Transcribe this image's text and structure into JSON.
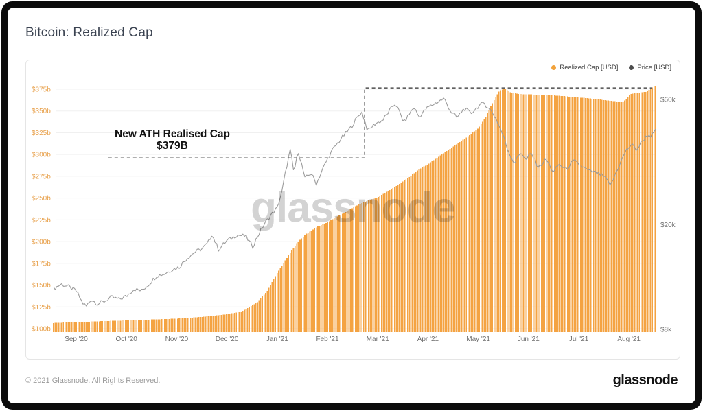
{
  "header": {
    "title": "Bitcoin: Realized Cap"
  },
  "legend": {
    "items": [
      {
        "label": "Realized Cap [USD]",
        "color": "#F2A23B"
      },
      {
        "label": "Price [USD]",
        "color": "#4D4D4D"
      }
    ]
  },
  "watermark": "glassnode",
  "footer": {
    "copyright": "© 2021 Glassnode. All Rights Reserved.",
    "brand": "glassnode"
  },
  "colors": {
    "realized_cap": "#F4A342",
    "price_line": "#9C9C9C",
    "axis_left": "#E8A14C",
    "axis_right": "#6E6E6E",
    "grid": "#F0F0F0",
    "annotation_dash": "#2B2B2B"
  },
  "chart_data": {
    "type": "combo",
    "title": "Bitcoin: Realized Cap",
    "x_unit": "months since Sep 1 2020",
    "x_range": [
      -0.45,
      11.53
    ],
    "grid": true,
    "legend_position": "top-right",
    "x_ticks": [
      {
        "label": "Sep '20",
        "t": 0
      },
      {
        "label": "Oct '20",
        "t": 1
      },
      {
        "label": "Nov '20",
        "t": 2
      },
      {
        "label": "Dec '20",
        "t": 3
      },
      {
        "label": "Jan '21",
        "t": 4
      },
      {
        "label": "Feb '21",
        "t": 5
      },
      {
        "label": "Mar '21",
        "t": 6
      },
      {
        "label": "Apr '21",
        "t": 7
      },
      {
        "label": "May '21",
        "t": 8
      },
      {
        "label": "Jun '21",
        "t": 9
      },
      {
        "label": "Jul '21",
        "t": 10
      },
      {
        "label": "Aug '21",
        "t": 11
      }
    ],
    "left_axis": {
      "unit": "USD billions",
      "ylim": [
        100,
        375
      ],
      "ticks": [
        {
          "label": "$375b",
          "value": 375
        },
        {
          "label": "$350b",
          "value": 350
        },
        {
          "label": "$325b",
          "value": 325
        },
        {
          "label": "$300b",
          "value": 300
        },
        {
          "label": "$275b",
          "value": 275
        },
        {
          "label": "$250b",
          "value": 250
        },
        {
          "label": "$225b",
          "value": 225
        },
        {
          "label": "$200b",
          "value": 200
        },
        {
          "label": "$175b",
          "value": 175
        },
        {
          "label": "$150b",
          "value": 150
        },
        {
          "label": "$125b",
          "value": 125
        },
        {
          "label": "$100b",
          "value": 100
        }
      ]
    },
    "right_axis": {
      "unit": "USD thousands",
      "scale": "log",
      "ticks": [
        {
          "label": "$60k",
          "value": 60
        },
        {
          "label": "$20k",
          "value": 20
        },
        {
          "label": "$8k",
          "value": 8
        }
      ]
    },
    "annotation": {
      "line1": "New ATH Realised Cap",
      "line2": "$379B",
      "pointer_value": 296,
      "pointer_x_start_t": 0.64,
      "riser_t": 5.74,
      "level_value": 376.5,
      "end_t": 11.45
    },
    "series": [
      {
        "name": "Realized Cap [USD]",
        "type": "bar",
        "axis": "left",
        "color": "#F4A342",
        "points": [
          [
            -0.45,
            106.5
          ],
          [
            0,
            107.5
          ],
          [
            0.5,
            108.5
          ],
          [
            1,
            109.5
          ],
          [
            1.5,
            110.5
          ],
          [
            2,
            111.5
          ],
          [
            2.5,
            113.5
          ],
          [
            3,
            116.5
          ],
          [
            3.3,
            120
          ],
          [
            3.6,
            130
          ],
          [
            3.8,
            143
          ],
          [
            4.0,
            164
          ],
          [
            4.2,
            182
          ],
          [
            4.4,
            199
          ],
          [
            4.6,
            210
          ],
          [
            4.8,
            217
          ],
          [
            5.0,
            222
          ],
          [
            5.2,
            229
          ],
          [
            5.4,
            235
          ],
          [
            5.6,
            242
          ],
          [
            5.8,
            247
          ],
          [
            6.0,
            251
          ],
          [
            6.2,
            258
          ],
          [
            6.4,
            265
          ],
          [
            6.6,
            273
          ],
          [
            6.8,
            282
          ],
          [
            7.0,
            289
          ],
          [
            7.2,
            297
          ],
          [
            7.4,
            305
          ],
          [
            7.6,
            313
          ],
          [
            7.8,
            321
          ],
          [
            8.0,
            330
          ],
          [
            8.15,
            343
          ],
          [
            8.3,
            361
          ],
          [
            8.42,
            373
          ],
          [
            8.52,
            376
          ],
          [
            8.65,
            371
          ],
          [
            8.8,
            369.5
          ],
          [
            9.0,
            369
          ],
          [
            9.3,
            368.5
          ],
          [
            9.6,
            367.5
          ],
          [
            9.9,
            366
          ],
          [
            10.2,
            364.5
          ],
          [
            10.5,
            362.5
          ],
          [
            10.75,
            361
          ],
          [
            10.88,
            360
          ],
          [
            10.95,
            364
          ],
          [
            11.02,
            369
          ],
          [
            11.1,
            370.5
          ],
          [
            11.25,
            371.5
          ],
          [
            11.35,
            372
          ],
          [
            11.42,
            375
          ],
          [
            11.48,
            377.5
          ],
          [
            11.53,
            379
          ]
        ]
      },
      {
        "name": "Price [USD]",
        "type": "line",
        "axis": "right",
        "color": "#9C9C9C",
        "points": [
          [
            -0.45,
            11.4
          ],
          [
            -0.3,
            11.9
          ],
          [
            -0.15,
            11.6
          ],
          [
            0.0,
            11.2
          ],
          [
            0.12,
            10.1
          ],
          [
            0.2,
            9.8
          ],
          [
            0.3,
            10.4
          ],
          [
            0.42,
            10.0
          ],
          [
            0.55,
            10.2
          ],
          [
            0.7,
            10.6
          ],
          [
            0.85,
            10.4
          ],
          [
            1.0,
            10.7
          ],
          [
            1.15,
            11.4
          ],
          [
            1.3,
            11.2
          ],
          [
            1.45,
            11.9
          ],
          [
            1.6,
            12.8
          ],
          [
            1.75,
            13.0
          ],
          [
            1.9,
            13.5
          ],
          [
            2.05,
            13.8
          ],
          [
            2.2,
            14.9
          ],
          [
            2.35,
            15.7
          ],
          [
            2.5,
            16.2
          ],
          [
            2.62,
            17.0
          ],
          [
            2.7,
            18.4
          ],
          [
            2.83,
            16.1
          ],
          [
            3.0,
            17.4
          ],
          [
            3.2,
            18.3
          ],
          [
            3.37,
            18.1
          ],
          [
            3.51,
            16.5
          ],
          [
            3.7,
            19.5
          ],
          [
            3.85,
            21.5
          ],
          [
            4.0,
            23.2
          ],
          [
            4.1,
            27.0
          ],
          [
            4.26,
            38.5
          ],
          [
            4.33,
            31.5
          ],
          [
            4.42,
            38.0
          ],
          [
            4.55,
            30.0
          ],
          [
            4.67,
            31.5
          ],
          [
            4.78,
            28.6
          ],
          [
            4.95,
            34.0
          ],
          [
            5.1,
            38.5
          ],
          [
            5.25,
            42.0
          ],
          [
            5.45,
            46.5
          ],
          [
            5.68,
            54.0
          ],
          [
            5.8,
            45.5
          ],
          [
            5.95,
            48.5
          ],
          [
            6.1,
            50.0
          ],
          [
            6.35,
            58.0
          ],
          [
            6.52,
            49.0
          ],
          [
            6.72,
            56.0
          ],
          [
            6.82,
            51.5
          ],
          [
            7.0,
            56.0
          ],
          [
            7.18,
            58.5
          ],
          [
            7.32,
            60.5
          ],
          [
            7.45,
            54.0
          ],
          [
            7.58,
            51.0
          ],
          [
            7.72,
            55.5
          ],
          [
            7.85,
            53.0
          ],
          [
            8.0,
            56.5
          ],
          [
            8.12,
            58.0
          ],
          [
            8.3,
            53.0
          ],
          [
            8.45,
            46.0
          ],
          [
            8.6,
            38.0
          ],
          [
            8.72,
            34.2
          ],
          [
            8.85,
            38.0
          ],
          [
            8.95,
            35.0
          ],
          [
            9.05,
            37.5
          ],
          [
            9.2,
            33.0
          ],
          [
            9.35,
            35.5
          ],
          [
            9.5,
            31.5
          ],
          [
            9.6,
            34.0
          ],
          [
            9.75,
            32.5
          ],
          [
            9.9,
            35.0
          ],
          [
            10.05,
            33.5
          ],
          [
            10.2,
            32.0
          ],
          [
            10.35,
            31.5
          ],
          [
            10.5,
            30.5
          ],
          [
            10.64,
            28.2
          ],
          [
            10.8,
            33.5
          ],
          [
            10.95,
            38.5
          ],
          [
            11.05,
            40.5
          ],
          [
            11.15,
            38.5
          ],
          [
            11.28,
            42.0
          ],
          [
            11.38,
            44.0
          ],
          [
            11.45,
            43.5
          ],
          [
            11.53,
            45.5
          ]
        ]
      }
    ]
  }
}
